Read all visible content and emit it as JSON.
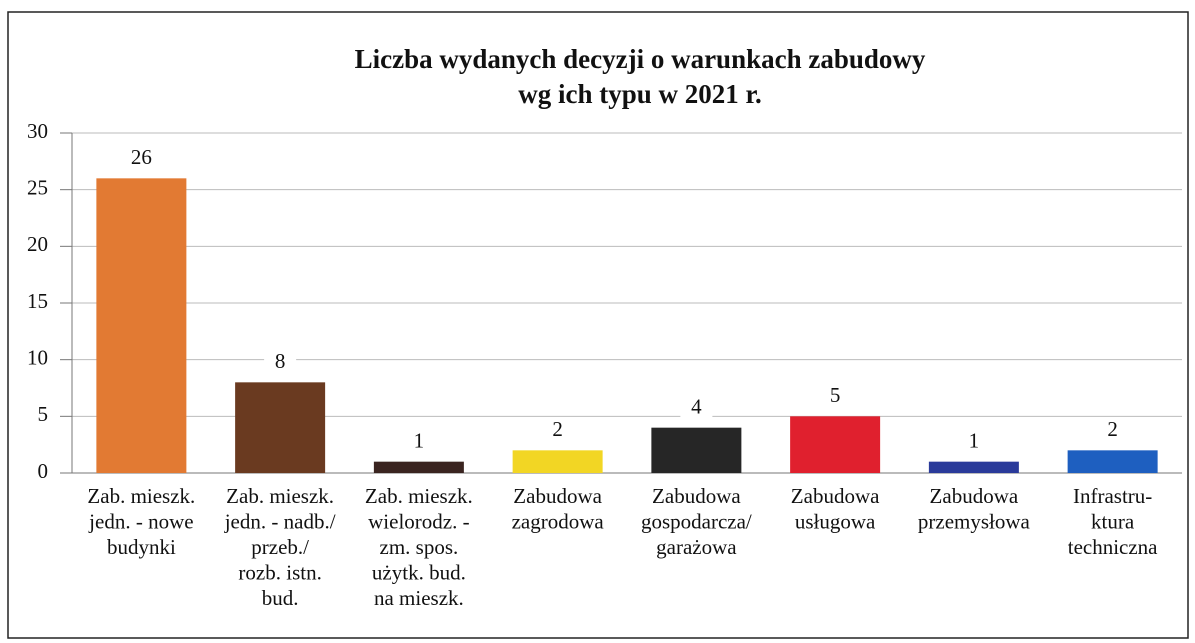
{
  "chart_data": {
    "type": "bar",
    "title": [
      "Liczba wydanych decyzji o warunkach zabudowy",
      "wg ich typu w 2021 r."
    ],
    "categories": [
      [
        "Zab. mieszk.",
        "jedn. - nowe",
        "budynki"
      ],
      [
        "Zab. mieszk.",
        "jedn. - nadb./",
        "przeb./",
        "rozb. istn.",
        "bud."
      ],
      [
        "Zab. mieszk.",
        "wielorodz. -",
        "zm. spos.",
        "użytk. bud.",
        "na mieszk."
      ],
      [
        "Zabudowa",
        "zagrodowa"
      ],
      [
        "Zabudowa",
        "gospodarcza/",
        "garażowa"
      ],
      [
        "Zabudowa",
        "usługowa"
      ],
      [
        "Zabudowa",
        "przemysłowa"
      ],
      [
        "Infrastru-",
        "ktura",
        "techniczna"
      ]
    ],
    "values": [
      26,
      8,
      1,
      2,
      4,
      5,
      1,
      2
    ],
    "colors": [
      "#e27a33",
      "#6a3a20",
      "#3a2420",
      "#f2d624",
      "#262626",
      "#e0202e",
      "#2a3a9a",
      "#1e5fc0"
    ],
    "ylim": [
      0,
      30
    ],
    "yticks": [
      0,
      5,
      10,
      15,
      20,
      25,
      30
    ],
    "grid": true
  }
}
